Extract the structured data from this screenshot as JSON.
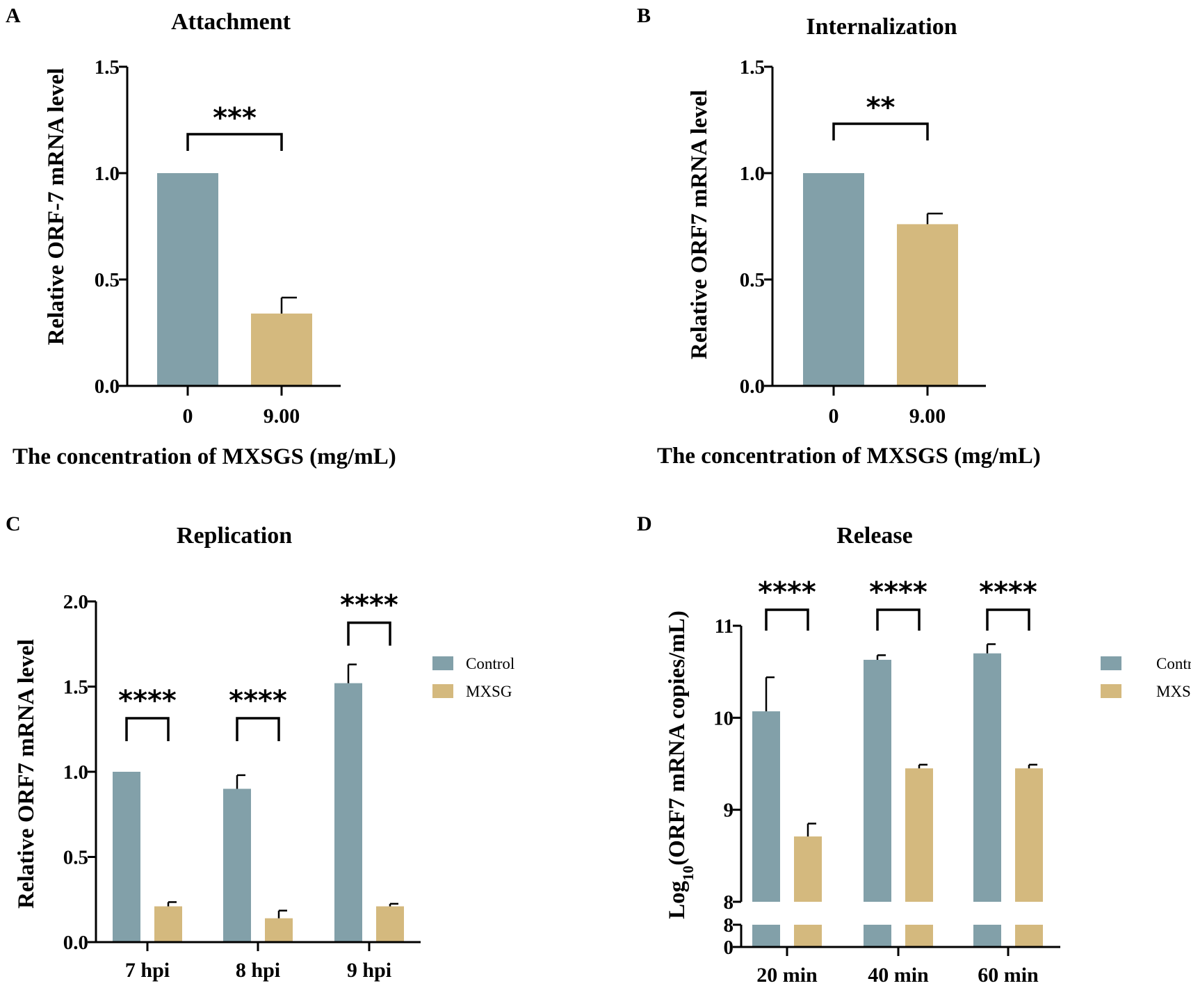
{
  "colors": {
    "control": "#82A0A9",
    "mxsg": "#D4B97E"
  },
  "chart_data": [
    {
      "id": "A",
      "type": "bar",
      "panel_letter": "A",
      "title": "Attachment",
      "xlabel": "The concentration of MXSGS (mg/mL)",
      "ylabel": "Relative ORF-7 mRNA level",
      "ylim": [
        0,
        1.5
      ],
      "yticks": [
        0.0,
        0.5,
        1.0,
        1.5
      ],
      "ytick_labels": [
        "0.0",
        "0.5",
        "1.0",
        "1.5"
      ],
      "categories": [
        "0",
        "9.00"
      ],
      "values": [
        1.0,
        0.34
      ],
      "errors": [
        0,
        0.075
      ],
      "significance": [
        {
          "from": 0,
          "to": 1,
          "label": "***"
        }
      ]
    },
    {
      "id": "B",
      "type": "bar",
      "panel_letter": "B",
      "title": "Internalization",
      "xlabel": "The concentration of MXSGS (mg/mL)",
      "ylabel": "Relative ORF7 mRNA level",
      "ylim": [
        0,
        1.5
      ],
      "yticks": [
        0.0,
        0.5,
        1.0,
        1.5
      ],
      "ytick_labels": [
        "0.0",
        "0.5",
        "1.0",
        "1.5"
      ],
      "categories": [
        "0",
        "9.00"
      ],
      "values": [
        1.0,
        0.76
      ],
      "errors": [
        0,
        0.05
      ],
      "significance": [
        {
          "from": 0,
          "to": 1,
          "label": "**"
        }
      ]
    },
    {
      "id": "C",
      "type": "bar",
      "panel_letter": "C",
      "title": "Replication",
      "xlabel": "",
      "ylabel": "Relative ORF7 mRNA level",
      "ylim": [
        0,
        2.0
      ],
      "yticks": [
        0.0,
        0.5,
        1.0,
        1.5,
        2.0
      ],
      "ytick_labels": [
        "0.0",
        "0.5",
        "1.0",
        "1.5",
        "2.0"
      ],
      "categories": [
        "7 hpi",
        "8 hpi",
        "9 hpi"
      ],
      "series": [
        {
          "name": "Control",
          "values": [
            1.0,
            0.9,
            1.52
          ],
          "errors": [
            0,
            0.08,
            0.11
          ]
        },
        {
          "name": "MXSG",
          "values": [
            0.21,
            0.14,
            0.21
          ],
          "errors": [
            0.025,
            0.045,
            0.015
          ]
        }
      ],
      "significance": [
        {
          "group": 0,
          "label": "****"
        },
        {
          "group": 1,
          "label": "****"
        },
        {
          "group": 2,
          "label": "****"
        }
      ],
      "legend": [
        "Control",
        "MXSG"
      ]
    },
    {
      "id": "D",
      "type": "bar",
      "panel_letter": "D",
      "title": "Release",
      "xlabel": "",
      "ylabel": "Log10(ORF7 mRNA copies/mL)",
      "ylabel_main": "Log",
      "ylabel_sub": "10",
      "ylabel_rest": "(ORF7 mRNA copies/mL)",
      "ylim": [
        8,
        11
      ],
      "axis_break": {
        "lower_segment": [
          0,
          8
        ],
        "upper_segment": [
          8,
          11
        ]
      },
      "yticks": [
        8,
        9,
        10,
        11
      ],
      "ytick_labels": [
        "8",
        "9",
        "10",
        "11"
      ],
      "lower_ytick_labels": [
        "8",
        "0"
      ],
      "categories": [
        "20 min",
        "40 min",
        "60 min"
      ],
      "series": [
        {
          "name": "Control",
          "values": [
            10.07,
            10.63,
            10.7
          ],
          "errors": [
            0.37,
            0.05,
            0.1
          ]
        },
        {
          "name": "MXSG",
          "values": [
            8.71,
            9.45,
            9.45
          ],
          "errors": [
            0.14,
            0.04,
            0.04
          ]
        }
      ],
      "significance": [
        {
          "group": 0,
          "label": "****"
        },
        {
          "group": 1,
          "label": "****"
        },
        {
          "group": 2,
          "label": "****"
        }
      ],
      "legend": [
        "Control",
        "MXSG"
      ]
    }
  ]
}
